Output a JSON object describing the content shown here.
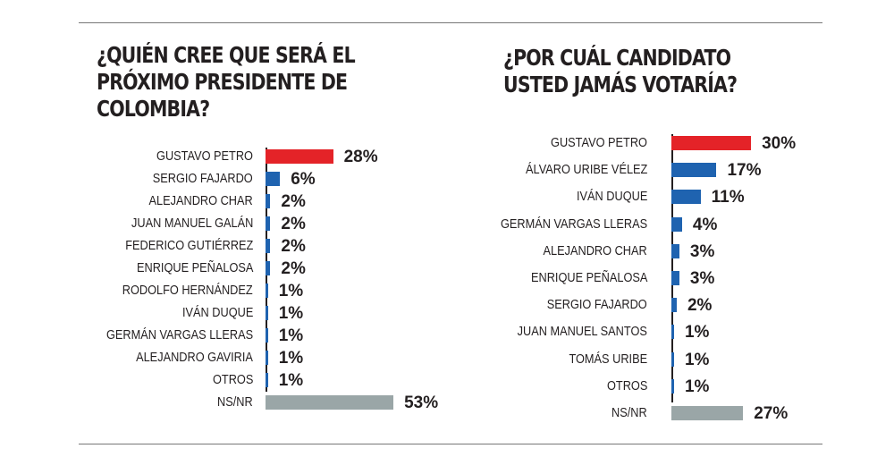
{
  "colors": {
    "highlight": "#e42328",
    "bar": "#1f63b0",
    "nsnr": "#9aa6a7"
  },
  "chart_data": [
    {
      "type": "bar",
      "orientation": "horizontal",
      "title": "¿QUIÉN CREE QUE SERÁ EL PRÓXIMO PRESIDENTE DE COLOMBIA?",
      "title_lines": [
        "¿QUIÉN CREE QUE SERÁ EL",
        "PRÓXIMO PRESIDENTE DE",
        "COLOMBIA?"
      ],
      "categories": [
        "GUSTAVO PETRO",
        "SERGIO FAJARDO",
        "ALEJANDRO CHAR",
        "JUAN MANUEL GALÁN",
        "FEDERICO GUTIÉRREZ",
        "ENRIQUE PEÑALOSA",
        "RODOLFO HERNÁNDEZ",
        "IVÁN DUQUE",
        "GERMÁN VARGAS LLERAS",
        "ALEJANDRO GAVIRIA",
        "OTROS",
        "NS/NR"
      ],
      "values": [
        28,
        6,
        2,
        2,
        2,
        2,
        1,
        1,
        1,
        1,
        1,
        53
      ],
      "labels": [
        "28%",
        "6%",
        "2%",
        "2%",
        "2%",
        "2%",
        "1%",
        "1%",
        "1%",
        "1%",
        "1%",
        "53%"
      ],
      "unit": "%"
    },
    {
      "type": "bar",
      "orientation": "horizontal",
      "title": "¿POR CUÁL CANDIDATO USTED JAMÁS VOTARÍA?",
      "title_lines": [
        "¿POR CUÁL CANDIDATO",
        "USTED JAMÁS VOTARÍA?"
      ],
      "categories": [
        "GUSTAVO PETRO",
        "ÁLVARO URIBE VÉLEZ",
        "IVÁN DUQUE",
        "GERMÁN VARGAS LLERAS",
        "ALEJANDRO CHAR",
        "ENRIQUE PEÑALOSA",
        "SERGIO FAJARDO",
        "JUAN MANUEL SANTOS",
        "TOMÁS URIBE",
        "OTROS",
        "NS/NR"
      ],
      "values": [
        30,
        17,
        11,
        4,
        3,
        3,
        2,
        1,
        1,
        1,
        27
      ],
      "labels": [
        "30%",
        "17%",
        "11%",
        "4%",
        "3%",
        "3%",
        "2%",
        "1%",
        "1%",
        "1%",
        "27%"
      ],
      "unit": "%"
    }
  ]
}
